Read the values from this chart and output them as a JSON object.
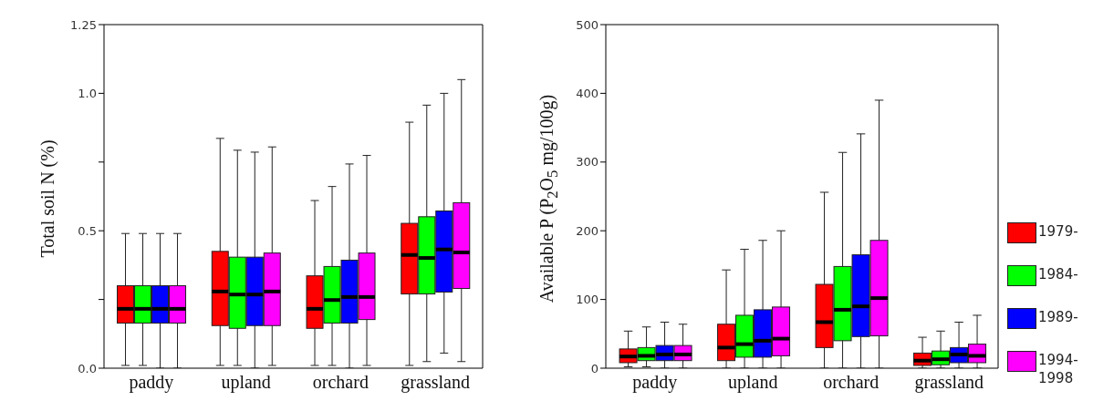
{
  "chart_data": [
    {
      "type": "box",
      "ylabel": "Total soil N (%)",
      "categories": [
        "paddy",
        "upland",
        "orchard",
        "grassland"
      ],
      "ylim": [
        0,
        1.25
      ],
      "yticks": [
        {
          "value": 0,
          "label": "0.0"
        },
        {
          "value": 0.25,
          "label": null
        },
        0.5,
        {
          "value": 0.75,
          "label": null
        },
        {
          "value": 1,
          "label": "1.0"
        },
        1.25
      ],
      "legend": false,
      "series": [
        {
          "color": "#ff0000",
          "boxes": [
            {
              "low": 0.01,
              "q1": 0.164,
              "median": 0.216,
              "q3": 0.3,
              "high": 0.49
            },
            {
              "low": 0.01,
              "q1": 0.155,
              "median": 0.279,
              "q3": 0.425,
              "high": 0.836
            },
            {
              "low": 0.01,
              "q1": 0.145,
              "median": 0.216,
              "q3": 0.336,
              "high": 0.61
            },
            {
              "low": 0.01,
              "q1": 0.27,
              "median": 0.412,
              "q3": 0.527,
              "high": 0.895
            }
          ]
        },
        {
          "color": "#00ff00",
          "boxes": [
            {
              "low": 0.01,
              "q1": 0.164,
              "median": 0.216,
              "q3": 0.3,
              "high": 0.49
            },
            {
              "low": 0.01,
              "q1": 0.145,
              "median": 0.268,
              "q3": 0.404,
              "high": 0.793
            },
            {
              "low": 0.01,
              "q1": 0.164,
              "median": 0.248,
              "q3": 0.37,
              "high": 0.661
            },
            {
              "low": 0.024,
              "q1": 0.27,
              "median": 0.401,
              "q3": 0.551,
              "high": 0.957
            }
          ]
        },
        {
          "color": "#0000ff",
          "boxes": [
            {
              "low": 0,
              "q1": 0.164,
              "median": 0.216,
              "q3": 0.3,
              "high": 0.49
            },
            {
              "low": 0,
              "q1": 0.155,
              "median": 0.268,
              "q3": 0.404,
              "high": 0.786
            },
            {
              "low": 0,
              "q1": 0.164,
              "median": 0.259,
              "q3": 0.393,
              "high": 0.743
            },
            {
              "low": 0.055,
              "q1": 0.277,
              "median": 0.432,
              "q3": 0.572,
              "high": 1.0
            }
          ]
        },
        {
          "color": "#ff00ff",
          "boxes": [
            {
              "low": 0,
              "q1": 0.164,
              "median": 0.216,
              "q3": 0.3,
              "high": 0.49
            },
            {
              "low": 0.01,
              "q1": 0.155,
              "median": 0.279,
              "q3": 0.419,
              "high": 0.805
            },
            {
              "low": 0.01,
              "q1": 0.177,
              "median": 0.259,
              "q3": 0.419,
              "high": 0.774
            },
            {
              "low": 0.024,
              "q1": 0.29,
              "median": 0.421,
              "q3": 0.602,
              "high": 1.05
            }
          ]
        }
      ]
    },
    {
      "type": "box",
      "ylabel": "Available P  (P$_{2}$O$_{5}$ mg/100g)",
      "categories": [
        "paddy",
        "upland",
        "orchard",
        "grassland"
      ],
      "ylim": [
        0,
        500
      ],
      "yticks": [
        0,
        100,
        200,
        300,
        400,
        500
      ],
      "legend": "right",
      "series": [
        {
          "name": "1979-",
          "color": "#ff0000",
          "boxes": [
            {
              "low": 2,
              "q1": 8,
              "median": 17,
              "q3": 28,
              "high": 54
            },
            {
              "low": 0,
              "q1": 11,
              "median": 30,
              "q3": 64,
              "high": 143
            },
            {
              "low": 0,
              "q1": 30,
              "median": 67,
              "q3": 122,
              "high": 256
            },
            {
              "low": 0,
              "q1": 4,
              "median": 11,
              "q3": 22,
              "high": 45
            }
          ]
        },
        {
          "name": "1984-",
          "color": "#00ff00",
          "boxes": [
            {
              "low": 2,
              "q1": 11,
              "median": 18,
              "q3": 30,
              "high": 60
            },
            {
              "low": 0,
              "q1": 16,
              "median": 35,
              "q3": 77,
              "high": 173
            },
            {
              "low": 0,
              "q1": 40,
              "median": 85,
              "q3": 148,
              "high": 314
            },
            {
              "low": 0,
              "q1": 5,
              "median": 13,
              "q3": 25,
              "high": 54
            }
          ]
        },
        {
          "name": "1989-",
          "color": "#0000ff",
          "boxes": [
            {
              "low": 0,
              "q1": 11,
              "median": 20,
              "q3": 33,
              "high": 67
            },
            {
              "low": 0,
              "q1": 16,
              "median": 40,
              "q3": 85,
              "high": 186
            },
            {
              "low": 0,
              "q1": 46,
              "median": 90,
              "q3": 165,
              "high": 341
            },
            {
              "low": 0,
              "q1": 8,
              "median": 20,
              "q3": 30,
              "high": 67
            }
          ]
        },
        {
          "name": "1994-1998",
          "color": "#ff00ff",
          "boxes": [
            {
              "low": 0,
              "q1": 11,
              "median": 20,
              "q3": 33,
              "high": 64
            },
            {
              "low": 0,
              "q1": 18,
              "median": 43,
              "q3": 89,
              "high": 200
            },
            {
              "low": 0,
              "q1": 47,
              "median": 102,
              "q3": 186,
              "high": 390
            },
            {
              "low": 0,
              "q1": 8,
              "median": 18,
              "q3": 35,
              "high": 77
            }
          ]
        }
      ]
    }
  ]
}
